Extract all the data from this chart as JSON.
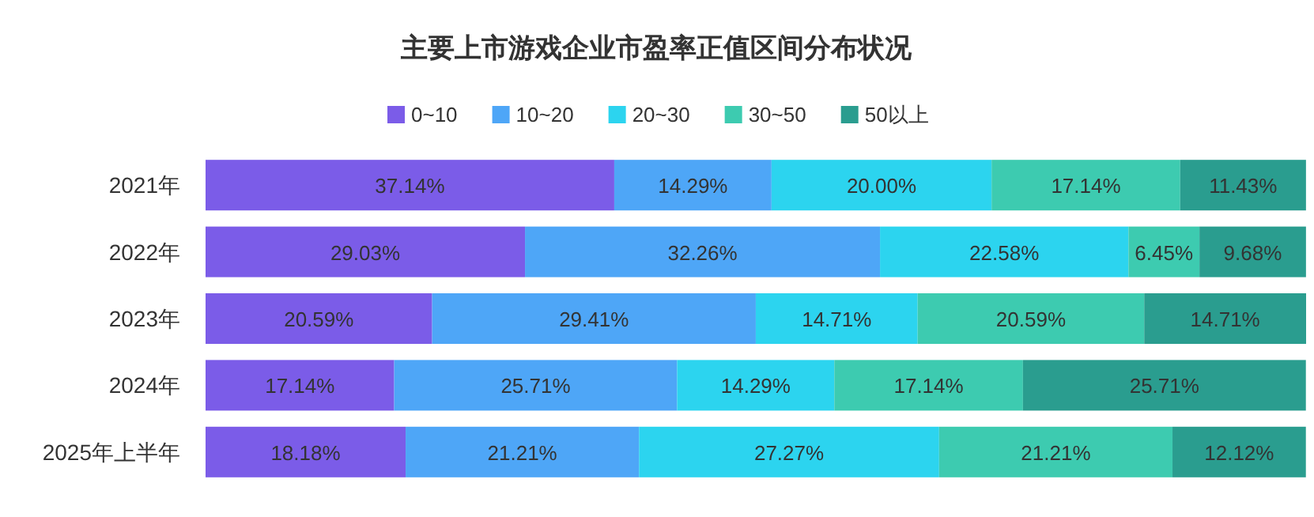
{
  "chart_data": {
    "type": "bar",
    "orientation": "horizontal",
    "stacked": true,
    "legend": "top",
    "title": "主要上市游戏企业市盈率正值区间分布状况",
    "categories": [
      "2021年",
      "2022年",
      "2023年",
      "2024年",
      "2025年上半年"
    ],
    "series": [
      {
        "name": "0~10",
        "color": "#7b5ce8",
        "values": [
          37.14,
          29.03,
          20.59,
          17.14,
          18.18
        ],
        "value_labels": [
          "37.14%",
          "29.03%",
          "20.59%",
          "17.14%",
          "18.18%"
        ]
      },
      {
        "name": "10~20",
        "color": "#4ea6f7",
        "values": [
          14.29,
          32.26,
          29.41,
          25.71,
          21.21
        ],
        "value_labels": [
          "14.29%",
          "32.26%",
          "29.41%",
          "25.71%",
          "21.21%"
        ]
      },
      {
        "name": "20~30",
        "color": "#2cd4ef",
        "values": [
          20.0,
          22.58,
          14.71,
          14.29,
          27.27
        ],
        "value_labels": [
          "20.00%",
          "22.58%",
          "14.71%",
          "14.29%",
          "27.27%"
        ]
      },
      {
        "name": "30~50",
        "color": "#3dcbb0",
        "values": [
          17.14,
          6.45,
          20.59,
          17.14,
          21.21
        ],
        "value_labels": [
          "17.14%",
          "6.45%",
          "20.59%",
          "17.14%",
          "21.21%"
        ]
      },
      {
        "name": "50以上",
        "color": "#2a9d8f",
        "values": [
          11.43,
          9.68,
          14.71,
          25.71,
          12.12
        ],
        "value_labels": [
          "11.43%",
          "9.68%",
          "14.71%",
          "25.71%",
          "12.12%"
        ]
      }
    ]
  }
}
